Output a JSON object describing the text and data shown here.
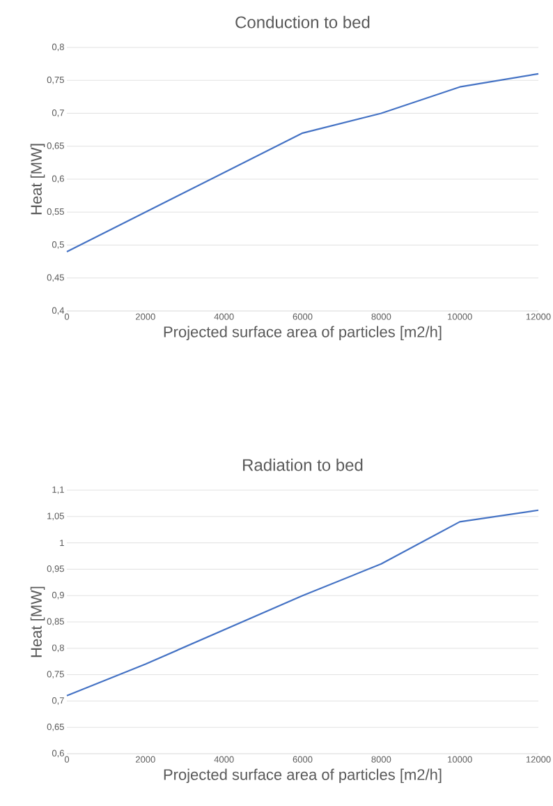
{
  "chart_data": [
    {
      "type": "line",
      "title": "Conduction to bed",
      "xlabel": "Projected surface area of particles [m2/h]",
      "ylabel": "Heat [MW]",
      "x": [
        0,
        2000,
        4000,
        6000,
        8000,
        10000,
        12000
      ],
      "series": [
        {
          "color": "#4472c4",
          "values": [
            0.49,
            0.55,
            0.61,
            0.67,
            0.7,
            0.74,
            0.76
          ]
        }
      ],
      "xlim": [
        0,
        12000
      ],
      "xticks": [
        0,
        2000,
        4000,
        6000,
        8000,
        10000,
        12000
      ],
      "ylim": [
        0.4,
        0.8
      ],
      "yticks": [
        {
          "value": 0.4,
          "label": "0,4"
        },
        {
          "value": 0.45,
          "label": "0,45"
        },
        {
          "value": 0.5,
          "label": "0,5"
        },
        {
          "value": 0.55,
          "label": "0,55"
        },
        {
          "value": 0.6,
          "label": "0,6"
        },
        {
          "value": 0.65,
          "label": "0,65"
        },
        {
          "value": 0.7,
          "label": "0,7"
        },
        {
          "value": 0.75,
          "label": "0,75"
        },
        {
          "value": 0.8,
          "label": "0,8"
        }
      ],
      "grid": "y"
    },
    {
      "type": "line",
      "title": "Radiation to bed",
      "xlabel": "Projected surface area of particles [m2/h]",
      "ylabel": "Heat [MW]",
      "x": [
        0,
        2000,
        4000,
        6000,
        8000,
        10000,
        12000
      ],
      "series": [
        {
          "color": "#4472c4",
          "values": [
            0.71,
            0.77,
            0.835,
            0.9,
            0.96,
            1.04,
            1.062
          ]
        }
      ],
      "xlim": [
        0,
        12000
      ],
      "xticks": [
        0,
        2000,
        4000,
        6000,
        8000,
        10000,
        12000
      ],
      "ylim": [
        0.6,
        1.1
      ],
      "yticks": [
        {
          "value": 0.6,
          "label": "0,6"
        },
        {
          "value": 0.65,
          "label": "0,65"
        },
        {
          "value": 0.7,
          "label": "0,7"
        },
        {
          "value": 0.75,
          "label": "0,75"
        },
        {
          "value": 0.8,
          "label": "0,8"
        },
        {
          "value": 0.85,
          "label": "0,85"
        },
        {
          "value": 0.9,
          "label": "0,9"
        },
        {
          "value": 0.95,
          "label": "0,95"
        },
        {
          "value": 1,
          "label": "1"
        },
        {
          "value": 1.05,
          "label": "1,05"
        },
        {
          "value": 1.1,
          "label": "1,1"
        }
      ],
      "grid": "y"
    }
  ]
}
